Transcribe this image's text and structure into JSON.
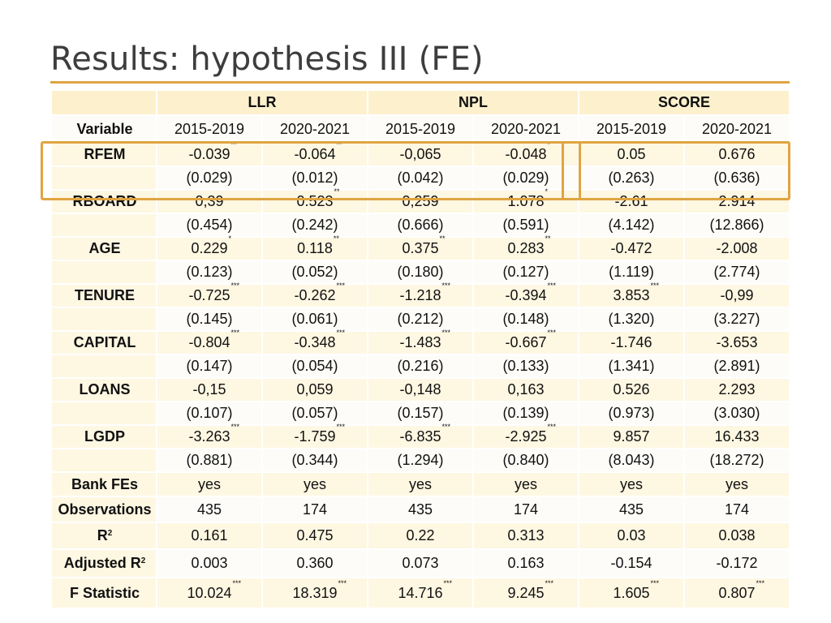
{
  "slide": {
    "title": "Results: hypothesis III (FE)"
  },
  "table": {
    "groups": [
      "LLR",
      "NPL",
      "SCORE"
    ],
    "variable_label": "Variable",
    "periods": [
      "2015-2019",
      "2020-2021",
      "2015-2019",
      "2020-2021",
      "2015-2019",
      "2020-2021"
    ],
    "rows": [
      {
        "label": "RFEM",
        "vals": [
          [
            "-0.039",
            "**"
          ],
          [
            "-0.064",
            "**"
          ],
          [
            "-0,065",
            ""
          ],
          [
            "-0.048",
            "*"
          ],
          [
            "0.05",
            ""
          ],
          [
            "0.676",
            ""
          ]
        ]
      },
      {
        "label": "",
        "vals": [
          [
            "(0.029)",
            ""
          ],
          [
            "(0.012)",
            ""
          ],
          [
            "(0.042)",
            ""
          ],
          [
            "(0.029)",
            ""
          ],
          [
            "(0.263)",
            ""
          ],
          [
            "(0.636)",
            ""
          ]
        ]
      },
      {
        "label": "RBOARD",
        "vals": [
          [
            "0,39",
            ""
          ],
          [
            "0.523",
            "**"
          ],
          [
            "0,259",
            ""
          ],
          [
            "1.078",
            "*"
          ],
          [
            "-2.61",
            ""
          ],
          [
            "2.914",
            ""
          ]
        ]
      },
      {
        "label": "",
        "vals": [
          [
            "(0.454)",
            ""
          ],
          [
            "(0.242)",
            ""
          ],
          [
            "(0.666)",
            ""
          ],
          [
            "(0.591)",
            ""
          ],
          [
            "(4.142)",
            ""
          ],
          [
            "(12.866)",
            ""
          ]
        ]
      },
      {
        "label": "AGE",
        "vals": [
          [
            "0.229",
            "*"
          ],
          [
            "0.118",
            "**"
          ],
          [
            "0.375",
            "**"
          ],
          [
            "0.283",
            "**"
          ],
          [
            "-0.472",
            ""
          ],
          [
            "-2.008",
            ""
          ]
        ]
      },
      {
        "label": "",
        "vals": [
          [
            "(0.123)",
            ""
          ],
          [
            "(0.052)",
            ""
          ],
          [
            "(0.180)",
            ""
          ],
          [
            "(0.127)",
            ""
          ],
          [
            "(1.119)",
            ""
          ],
          [
            "(2.774)",
            ""
          ]
        ]
      },
      {
        "label": "TENURE",
        "vals": [
          [
            "-0.725",
            "***"
          ],
          [
            "-0.262",
            "***"
          ],
          [
            "-1.218",
            "***"
          ],
          [
            "-0.394",
            "***"
          ],
          [
            "3.853",
            "***"
          ],
          [
            "-0,99",
            ""
          ]
        ]
      },
      {
        "label": "",
        "vals": [
          [
            "(0.145)",
            ""
          ],
          [
            "(0.061)",
            ""
          ],
          [
            "(0.212)",
            ""
          ],
          [
            "(0.148)",
            ""
          ],
          [
            "(1.320)",
            ""
          ],
          [
            "(3.227)",
            ""
          ]
        ]
      },
      {
        "label": "CAPITAL",
        "vals": [
          [
            "-0.804",
            "***"
          ],
          [
            "-0.348",
            "***"
          ],
          [
            "-1.483",
            "***"
          ],
          [
            "-0.667",
            "***"
          ],
          [
            "-1.746",
            ""
          ],
          [
            "-3.653",
            ""
          ]
        ]
      },
      {
        "label": "",
        "vals": [
          [
            "(0.147)",
            ""
          ],
          [
            "(0.054)",
            ""
          ],
          [
            "(0.216)",
            ""
          ],
          [
            "(0.133)",
            ""
          ],
          [
            "(1.341)",
            ""
          ],
          [
            "(2.891)",
            ""
          ]
        ]
      },
      {
        "label": "LOANS",
        "vals": [
          [
            "-0,15",
            ""
          ],
          [
            "0,059",
            ""
          ],
          [
            "-0,148",
            ""
          ],
          [
            "0,163",
            ""
          ],
          [
            "0.526",
            ""
          ],
          [
            "2.293",
            ""
          ]
        ]
      },
      {
        "label": "",
        "vals": [
          [
            "(0.107)",
            ""
          ],
          [
            "(0.057)",
            ""
          ],
          [
            "(0.157)",
            ""
          ],
          [
            "(0.139)",
            ""
          ],
          [
            "(0.973)",
            ""
          ],
          [
            "(3.030)",
            ""
          ]
        ]
      },
      {
        "label": "LGDP",
        "vals": [
          [
            "-3.263",
            "***"
          ],
          [
            "-1.759",
            "***"
          ],
          [
            "-6.835",
            "***"
          ],
          [
            "-2.925",
            "***"
          ],
          [
            "9.857",
            ""
          ],
          [
            "16.433",
            ""
          ]
        ]
      },
      {
        "label": "",
        "vals": [
          [
            "(0.881)",
            ""
          ],
          [
            "(0.344)",
            ""
          ],
          [
            "(1.294)",
            ""
          ],
          [
            "(0.840)",
            ""
          ],
          [
            "(8.043)",
            ""
          ],
          [
            "(18.272)",
            ""
          ]
        ]
      },
      {
        "label": "Bank FEs",
        "vals": [
          [
            "yes",
            ""
          ],
          [
            "yes",
            ""
          ],
          [
            "yes",
            ""
          ],
          [
            "yes",
            ""
          ],
          [
            "yes",
            ""
          ],
          [
            "yes",
            ""
          ]
        ]
      },
      {
        "label": "Observations",
        "vals": [
          [
            "435",
            ""
          ],
          [
            "174",
            ""
          ],
          [
            "435",
            ""
          ],
          [
            "174",
            ""
          ],
          [
            "435",
            ""
          ],
          [
            "174",
            ""
          ]
        ]
      },
      {
        "label": "R",
        "sup": "2",
        "vals": [
          [
            "0.161",
            ""
          ],
          [
            "0.475",
            ""
          ],
          [
            "0.22",
            ""
          ],
          [
            "0.313",
            ""
          ],
          [
            "0.03",
            ""
          ],
          [
            "0.038",
            ""
          ]
        ]
      },
      {
        "label": "Adjusted R",
        "sup": "2",
        "vals": [
          [
            "0.003",
            ""
          ],
          [
            "0.360",
            ""
          ],
          [
            "0.073",
            ""
          ],
          [
            "0.163",
            ""
          ],
          [
            "-0.154",
            ""
          ],
          [
            "-0.172",
            ""
          ]
        ]
      },
      {
        "label": "F Statistic",
        "vals": [
          [
            "10.024",
            "***"
          ],
          [
            "18.319",
            "***"
          ],
          [
            "14.716",
            "***"
          ],
          [
            "9.245",
            "***"
          ],
          [
            "1.605",
            "***"
          ],
          [
            "0.807",
            "***"
          ]
        ]
      }
    ]
  },
  "colors": {
    "accent": "#e0a442",
    "band": "#fef7e2",
    "header": "#fdf1cd"
  }
}
